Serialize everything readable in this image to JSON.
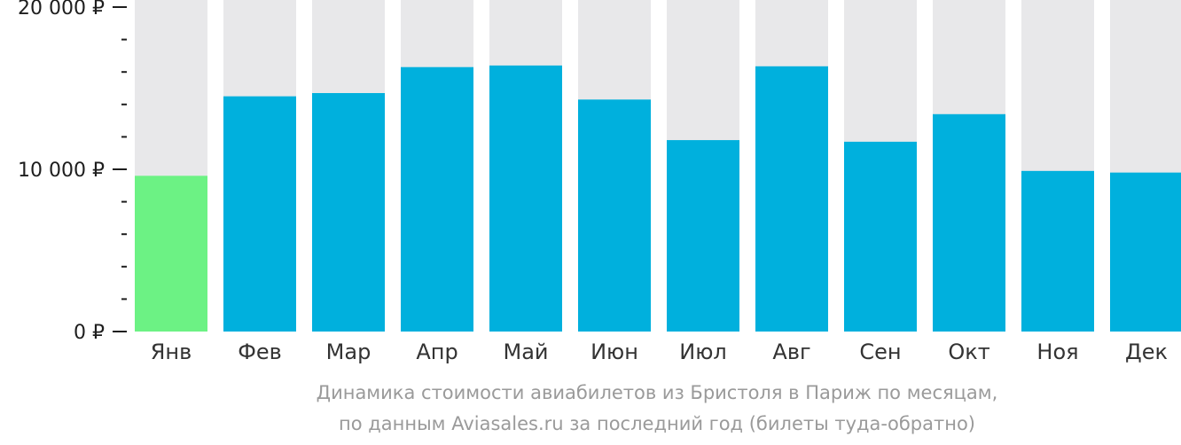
{
  "chart_data": {
    "type": "bar",
    "categories": [
      "Янв",
      "Фев",
      "Мар",
      "Апр",
      "Май",
      "Июн",
      "Июл",
      "Авг",
      "Сен",
      "Окт",
      "Ноя",
      "Дек"
    ],
    "values": [
      9600,
      14500,
      14700,
      16300,
      16400,
      14300,
      11800,
      16350,
      11700,
      13400,
      9900,
      9800
    ],
    "ylim": [
      0,
      20000
    ],
    "y_ticks": [
      {
        "value": 0,
        "label": "0 ₽"
      },
      {
        "value": 10000,
        "label": "10 000 ₽"
      },
      {
        "value": 20000,
        "label": "20 000 ₽"
      }
    ],
    "y_minor_step": 2000,
    "highlight_index": 0,
    "colors": {
      "bar": "#00b0dd",
      "highlight": "#6cf284",
      "track": "#e8e8ea",
      "axis": "#1e1e1e"
    }
  },
  "caption": {
    "line1": "Динамика стоимости авиабилетов из Бристоля в Париж по месяцам,",
    "line2": "по данным Aviasales.ru за последний год (билеты туда-обратно)"
  }
}
